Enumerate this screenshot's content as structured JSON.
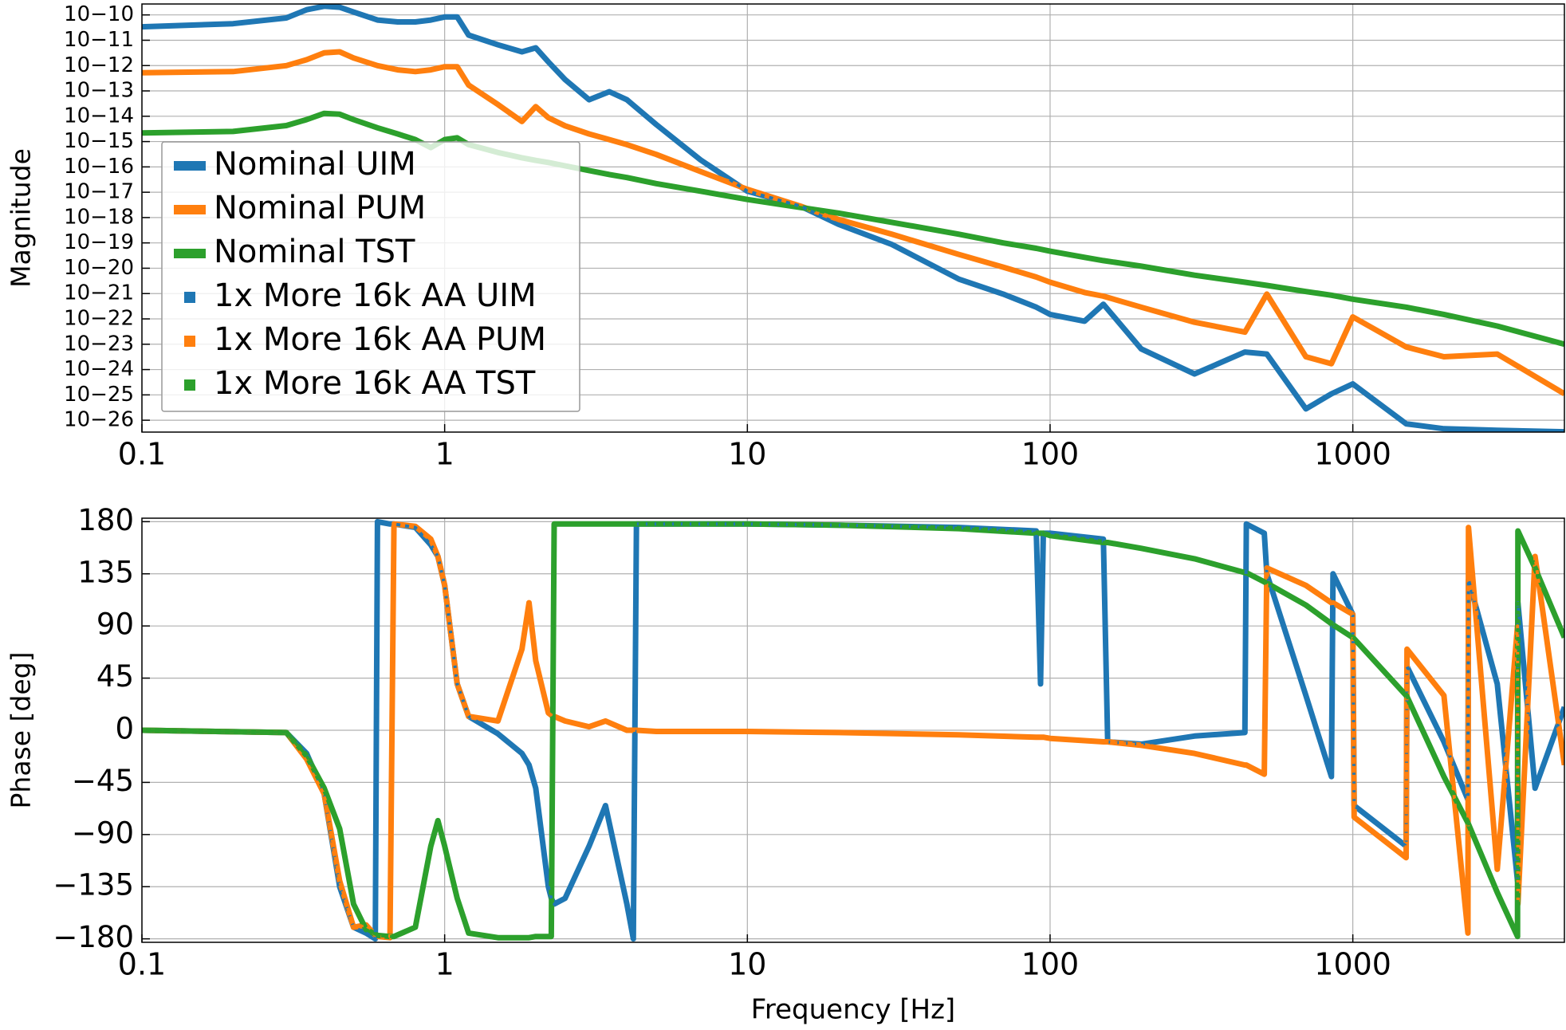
{
  "chart_data": [
    {
      "type": "line",
      "ylabel": "Magnitude",
      "xscale": "log",
      "yscale": "log",
      "grid": true,
      "legend_loc": "lower left",
      "xlim": [
        0.1,
        5000
      ],
      "ylim": [
        3.4e-27,
        2.7e-10
      ],
      "xticks": [
        0.1,
        1,
        10,
        100,
        1000
      ],
      "yticks": [
        {
          "value": 1e-10,
          "label": "10−10"
        },
        {
          "value": 1e-11,
          "label": "10−11"
        },
        {
          "value": 1e-12,
          "label": "10−12"
        },
        {
          "value": 1e-13,
          "label": "10−13"
        },
        {
          "value": 1e-14,
          "label": "10−14"
        },
        {
          "value": 1e-15,
          "label": "10−15"
        },
        {
          "value": 1e-16,
          "label": "10−16"
        },
        {
          "value": 1e-17,
          "label": "10−17"
        },
        {
          "value": 1e-18,
          "label": "10−18"
        },
        {
          "value": 1e-19,
          "label": "10−19"
        },
        {
          "value": 1e-20,
          "label": "10−20"
        },
        {
          "value": 1e-21,
          "label": "10−21"
        },
        {
          "value": 1e-22,
          "label": "10−22"
        },
        {
          "value": 1e-23,
          "label": "10−23"
        },
        {
          "value": 1e-24,
          "label": "10−24"
        },
        {
          "value": 1e-25,
          "label": "10−25"
        },
        {
          "value": 1e-26,
          "label": "10−26"
        }
      ],
      "x": [
        0.1,
        0.2,
        0.3,
        0.35,
        0.4,
        0.45,
        0.5,
        0.6,
        0.7,
        0.8,
        0.9,
        1,
        1.1,
        1.2,
        1.5,
        1.8,
        2,
        2.2,
        2.5,
        3,
        3.5,
        4,
        5,
        7,
        10,
        15,
        20,
        30,
        50,
        70,
        90,
        100,
        130,
        150,
        200,
        300,
        440,
        520,
        700,
        850,
        1000,
        1500,
        2000,
        3000,
        5000
      ],
      "series": [
        {
          "name": "Nominal UIM",
          "color": "#1f77b4",
          "linestyle": "solid",
          "values": [
            3.4e-11,
            4.5e-11,
            7.6e-11,
            1.6e-10,
            2.2e-10,
            2e-10,
            1.3e-10,
            6.3e-11,
            5.3e-11,
            5.3e-11,
            6.3e-11,
            8.3e-11,
            8.3e-11,
            1.6e-11,
            6.6e-12,
            3.5e-12,
            5e-12,
            1.4e-12,
            2.8e-13,
            4.5e-14,
            9.3e-14,
            4.5e-14,
            4.7e-15,
            1.9e-16,
            1.1e-17,
            2.8e-18,
            5.4e-19,
            8.7e-20,
            3.7e-21,
            9.5e-22,
            2.9e-22,
            1.5e-22,
            8.1e-23,
            3.8e-22,
            6.5e-24,
            6.7e-25,
            4.9e-24,
            4.1e-24,
            2.8e-26,
            1.1e-25,
            2.7e-25,
            7.2e-27,
            4.6e-27,
            4e-27,
            3.5e-27
          ]
        },
        {
          "name": "Nominal PUM",
          "color": "#ff7f0e",
          "linestyle": "solid",
          "values": [
            5.2e-13,
            5.8e-13,
            1e-12,
            1.7e-12,
            3.2e-12,
            3.5e-12,
            2e-12,
            1e-12,
            6.8e-13,
            5.8e-13,
            6.8e-13,
            9e-13,
            9e-13,
            1.7e-13,
            2.9e-14,
            6.2e-15,
            2.4e-14,
            8.8e-15,
            4.2e-15,
            2e-15,
            1.2e-15,
            7.6e-16,
            3.1e-16,
            6.6e-17,
            1.3e-17,
            2.8e-18,
            8.5e-19,
            2.2e-19,
            3.5e-20,
            1.1e-20,
            4.5e-21,
            2.8e-21,
            1.1e-21,
            7.9e-22,
            2.9e-22,
            7.4e-23,
            3e-23,
            9.5e-22,
            3.2e-24,
            1.7e-24,
            1.2e-22,
            7.8e-24,
            3.2e-24,
            4.1e-24,
            1.1e-25
          ]
        },
        {
          "name": "Nominal TST",
          "color": "#2ca02c",
          "linestyle": "solid",
          "values": [
            2.2e-15,
            2.5e-15,
            4.3e-15,
            7.4e-15,
            1.3e-14,
            1.2e-14,
            7.4e-15,
            3.5e-15,
            2e-15,
            1.2e-15,
            5.8e-16,
            1.2e-15,
            1.4e-15,
            7.6e-16,
            3.7e-16,
            2.3e-16,
            1.8e-16,
            1.5e-16,
            1.1e-16,
            7.2e-17,
            5e-17,
            3.8e-17,
            2.2e-17,
            1.1e-17,
            5.2e-18,
            2.5e-18,
            1.5e-18,
            6.5e-19,
            2.2e-19,
            1e-19,
            6.1e-20,
            4.7e-20,
            2.7e-20,
            2e-20,
            1.2e-20,
            5.3e-21,
            2.8e-21,
            2.1e-21,
            1.2e-21,
            8.6e-22,
            6e-22,
            2.9e-22,
            1.5e-22,
            5.2e-23,
            1e-23
          ]
        },
        {
          "name": "1x More 16k AA UIM",
          "color": "#1f77b4",
          "linestyle": "dotted",
          "values": [
            3.4e-11,
            4.5e-11,
            7.6e-11,
            1.6e-10,
            2.2e-10,
            2e-10,
            1.3e-10,
            6.3e-11,
            5.3e-11,
            5.3e-11,
            6.3e-11,
            8.3e-11,
            8.3e-11,
            1.6e-11,
            6.6e-12,
            3.5e-12,
            5e-12,
            1.4e-12,
            2.8e-13,
            4.5e-14,
            9.3e-14,
            4.5e-14,
            4.7e-15,
            1.9e-16,
            1.1e-17,
            2.8e-18,
            5.4e-19,
            8.7e-20,
            3.7e-21,
            9.5e-22,
            2.9e-22,
            1.5e-22,
            8.1e-23,
            3.8e-22,
            6.5e-24,
            6.7e-25,
            4.9e-24,
            4.1e-24,
            2.8e-26,
            1.1e-25,
            2.7e-25,
            7.2e-27,
            4.6e-27,
            4e-27,
            3.5e-27
          ]
        },
        {
          "name": "1x More 16k AA PUM",
          "color": "#ff7f0e",
          "linestyle": "dotted",
          "values": [
            5.2e-13,
            5.8e-13,
            1e-12,
            1.7e-12,
            3.2e-12,
            3.5e-12,
            2e-12,
            1e-12,
            6.8e-13,
            5.8e-13,
            6.8e-13,
            9e-13,
            9e-13,
            1.7e-13,
            2.9e-14,
            6.2e-15,
            2.4e-14,
            8.8e-15,
            4.2e-15,
            2e-15,
            1.2e-15,
            7.6e-16,
            3.1e-16,
            6.6e-17,
            1.3e-17,
            2.8e-18,
            8.5e-19,
            2.2e-19,
            3.5e-20,
            1.1e-20,
            4.5e-21,
            2.8e-21,
            1.1e-21,
            7.9e-22,
            2.9e-22,
            7.4e-23,
            3e-23,
            9.5e-22,
            3.2e-24,
            1.7e-24,
            1.2e-22,
            7.8e-24,
            3.2e-24,
            4.1e-24,
            1.1e-25
          ]
        },
        {
          "name": "1x More 16k AA TST",
          "color": "#2ca02c",
          "linestyle": "dotted",
          "values": [
            2.2e-15,
            2.5e-15,
            4.3e-15,
            7.4e-15,
            1.3e-14,
            1.2e-14,
            7.4e-15,
            3.5e-15,
            2e-15,
            1.2e-15,
            5.8e-16,
            1.2e-15,
            1.4e-15,
            7.6e-16,
            3.7e-16,
            2.3e-16,
            1.8e-16,
            1.5e-16,
            1.1e-16,
            7.2e-17,
            5e-17,
            3.8e-17,
            2.2e-17,
            1.1e-17,
            5.2e-18,
            2.5e-18,
            1.5e-18,
            6.5e-19,
            2.2e-19,
            1e-19,
            6.1e-20,
            4.7e-20,
            2.7e-20,
            2e-20,
            1.2e-20,
            5.3e-21,
            2.8e-21,
            2.1e-21,
            1.2e-21,
            8.6e-22,
            6e-22,
            2.9e-22,
            1.5e-22,
            5.2e-23,
            1e-23
          ]
        }
      ]
    },
    {
      "type": "line",
      "xlabel": "Frequency [Hz]",
      "ylabel": "Phase [deg]",
      "xscale": "log",
      "yscale": "linear",
      "grid": true,
      "xlim": [
        0.1,
        5000
      ],
      "ylim": [
        -183,
        183
      ],
      "xticks": [
        0.1,
        1,
        10,
        100,
        1000
      ],
      "yticks": [
        {
          "value": -180,
          "label": "−180"
        },
        {
          "value": -135,
          "label": "−135"
        },
        {
          "value": -90,
          "label": "−90"
        },
        {
          "value": -45,
          "label": "−45"
        },
        0,
        45,
        90,
        135,
        180
      ],
      "x": [
        0.1,
        0.3,
        0.35,
        0.4,
        0.45,
        0.5,
        0.55,
        0.59,
        0.6,
        0.66,
        0.68,
        0.8,
        0.9,
        0.95,
        1.0,
        1.1,
        1.2,
        1.5,
        1.8,
        1.9,
        2.0,
        2.2,
        2.25,
        2.3,
        2.5,
        3,
        3.4,
        4,
        4.2,
        4.3,
        5,
        10,
        20,
        50,
        90,
        93,
        95,
        100,
        150,
        155,
        200,
        300,
        440,
        445,
        510,
        520,
        700,
        850,
        860,
        1000,
        1010,
        1500,
        1510,
        2000,
        2400,
        2410,
        3000,
        3500,
        3510,
        4000,
        5000
      ],
      "series": [
        {
          "name": "Nominal UIM",
          "color": "#1f77b4",
          "linestyle": "solid",
          "values": [
            0,
            -2,
            -20,
            -55,
            -135,
            -170,
            -175,
            -180,
            180,
            178,
            178,
            175,
            160,
            150,
            125,
            40,
            12,
            -3,
            -20,
            -30,
            -50,
            -135,
            -145,
            -150,
            -145,
            -100,
            -65,
            -150,
            -180,
            178,
            178,
            178,
            177,
            175,
            172,
            40,
            170,
            170,
            165,
            -10,
            -12,
            -5,
            -2,
            178,
            170,
            135,
            30,
            -40,
            135,
            100,
            -65,
            -100,
            55,
            -10,
            -60,
            130,
            40,
            -130,
            110,
            -50,
            20
          ]
        },
        {
          "name": "Nominal PUM",
          "color": "#ff7f0e",
          "linestyle": "solid",
          "values": [
            0,
            -2,
            -25,
            -55,
            -130,
            -170,
            -168,
            -177,
            -178,
            -179,
            178,
            176,
            165,
            150,
            125,
            40,
            12,
            8,
            70,
            110,
            60,
            15,
            13,
            12,
            8,
            3,
            8,
            0,
            0,
            0,
            -1,
            -1,
            -2,
            -4,
            -6,
            -6,
            -6,
            -7,
            -10,
            -10,
            -13,
            -20,
            -30,
            -30,
            -38,
            140,
            125,
            110,
            110,
            100,
            -75,
            -110,
            70,
            30,
            -175,
            175,
            -120,
            90,
            -150,
            150,
            -30
          ]
        },
        {
          "name": "Nominal TST",
          "color": "#2ca02c",
          "linestyle": "solid",
          "values": [
            0,
            -2,
            -22,
            -50,
            -85,
            -150,
            -172,
            -176,
            -177,
            -178,
            -178,
            -170,
            -100,
            -78,
            -100,
            -145,
            -175,
            -179,
            -179,
            -179,
            -178,
            -178,
            -178,
            178,
            178,
            178,
            178,
            178,
            178,
            178,
            178,
            178,
            177,
            174,
            170,
            170,
            170,
            168,
            162,
            162,
            157,
            148,
            136,
            136,
            128,
            127,
            108,
            92,
            91,
            80,
            79,
            30,
            29,
            -40,
            -80,
            -81,
            -140,
            -178,
            172,
            140,
            80
          ]
        },
        {
          "name": "1x More 16k AA UIM",
          "color": "#1f77b4",
          "linestyle": "dotted",
          "values": [
            0,
            -2,
            -20,
            -55,
            -135,
            -170,
            -175,
            -180,
            180,
            178,
            178,
            175,
            160,
            150,
            125,
            40,
            12,
            -3,
            -20,
            -30,
            -50,
            -135,
            -145,
            -150,
            -145,
            -100,
            -65,
            -150,
            -180,
            178,
            178,
            178,
            177,
            175,
            172,
            40,
            170,
            170,
            165,
            -10,
            -12,
            -5,
            -2,
            178,
            170,
            135,
            30,
            -40,
            135,
            100,
            -65,
            -100,
            55,
            -10,
            -60,
            130,
            40,
            -130,
            110,
            -50,
            20
          ]
        },
        {
          "name": "1x More 16k AA PUM",
          "color": "#ff7f0e",
          "linestyle": "dotted",
          "values": [
            0,
            -2,
            -25,
            -55,
            -130,
            -170,
            -168,
            -177,
            -178,
            -179,
            178,
            176,
            165,
            150,
            125,
            40,
            12,
            8,
            70,
            110,
            60,
            15,
            13,
            12,
            8,
            3,
            8,
            0,
            0,
            0,
            -1,
            -1,
            -2,
            -4,
            -6,
            -6,
            -6,
            -7,
            -10,
            -10,
            -13,
            -20,
            -30,
            -30,
            -38,
            140,
            125,
            110,
            110,
            100,
            -75,
            -110,
            70,
            30,
            -175,
            175,
            -120,
            90,
            -150,
            150,
            -30
          ]
        },
        {
          "name": "1x More 16k AA TST",
          "color": "#2ca02c",
          "linestyle": "dotted",
          "values": [
            0,
            -2,
            -22,
            -50,
            -85,
            -150,
            -172,
            -176,
            -177,
            -178,
            -178,
            -170,
            -100,
            -78,
            -100,
            -145,
            -175,
            -179,
            -179,
            -179,
            -178,
            -178,
            -178,
            178,
            178,
            178,
            178,
            178,
            178,
            178,
            178,
            178,
            177,
            174,
            170,
            170,
            170,
            168,
            162,
            162,
            157,
            148,
            136,
            136,
            128,
            127,
            108,
            92,
            91,
            80,
            79,
            30,
            29,
            -40,
            -80,
            -81,
            -140,
            -178,
            172,
            140,
            80
          ]
        }
      ]
    }
  ]
}
